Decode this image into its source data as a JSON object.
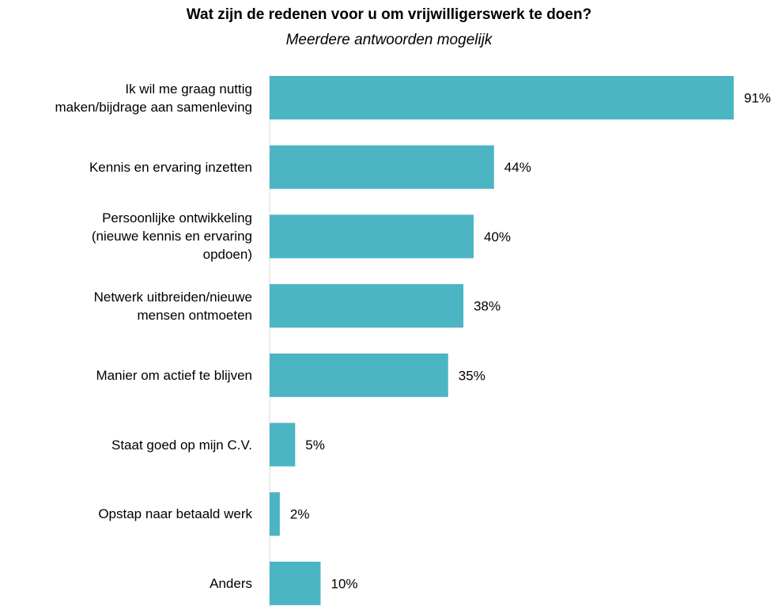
{
  "chart_data": {
    "type": "bar",
    "orientation": "horizontal",
    "title": "Wat zijn de redenen voor u om vrijwilligerswerk te doen?",
    "subtitle": "Meerdere antwoorden mogelijk",
    "categories": [
      "Ik wil me graag nuttig maken/bijdrage aan samenleving",
      "Kennis en ervaring inzetten",
      "Persoonlijke ontwikkeling (nieuwe kennis en ervaring opdoen)",
      "Netwerk uitbreiden/nieuwe mensen ontmoeten",
      "Manier om actief te blijven",
      "Staat goed op mijn C.V.",
      "Opstap naar betaald werk",
      "Anders"
    ],
    "category_lines": [
      [
        "Ik wil me graag nuttig",
        "maken/bijdrage aan samenleving"
      ],
      [
        "Kennis en ervaring inzetten"
      ],
      [
        "Persoonlijke ontwikkeling",
        "(nieuwe kennis en ervaring",
        "opdoen)"
      ],
      [
        "Netwerk uitbreiden/nieuwe",
        "mensen ontmoeten"
      ],
      [
        "Manier om actief te blijven"
      ],
      [
        "Staat goed op mijn C.V."
      ],
      [
        "Opstap naar betaald werk"
      ],
      [
        "Anders"
      ]
    ],
    "values": [
      91,
      44,
      40,
      38,
      35,
      5,
      2,
      10
    ],
    "value_labels": [
      "91%",
      "44%",
      "40%",
      "38%",
      "35%",
      "5%",
      "2%",
      "10%"
    ],
    "xlim": [
      0,
      100
    ],
    "grid": false,
    "legend": "none",
    "bar_color": "#4bb5c3",
    "axis_color": "#d9d9d9"
  }
}
